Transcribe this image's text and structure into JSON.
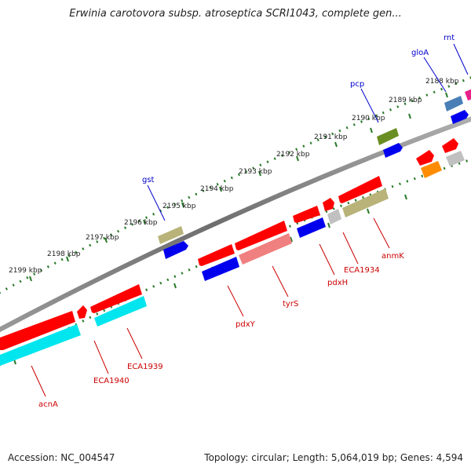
{
  "title": "Erwinia carotovora subsp. atroseptica SCRI1043, complete gen...",
  "footer": {
    "accession_label": "Accession:",
    "accession": "NC_004547",
    "topology_label": "Topology:",
    "topology": "circular",
    "length_label": "Length:",
    "length": "5,064,019 bp",
    "genes_label": "Genes:",
    "genes": "4,594"
  },
  "colors": {
    "backbone": "#7a7a7a",
    "forward_label": "#0000cc",
    "reverse_label": "#cc0000",
    "ticks": "#2a7a2a"
  },
  "kbp_labels": [
    "2199 kbp",
    "2198 kbp",
    "2197 kbp",
    "2196 kbp",
    "2195 kbp",
    "2194 kbp",
    "2193 kbp",
    "2192 kbp",
    "2191 kbp",
    "2190 kbp",
    "2189 kbp",
    "2188 kbp"
  ],
  "forward_genes": [
    {
      "name": "gst",
      "color": "#b9b37a"
    },
    {
      "name": "pcp",
      "color": "#6b8e23"
    },
    {
      "name": "gloA",
      "color": "#4a7fb5"
    },
    {
      "name": "rnt",
      "color": "#e8208a"
    }
  ],
  "reverse_genes": [
    {
      "name": "acnA",
      "color": "#ff0000"
    },
    {
      "name": "ECA1940",
      "color": "#ff0000"
    },
    {
      "name": "ECA1939",
      "color": "#ff0000"
    },
    {
      "name": "pdxY",
      "color": "#ff0000"
    },
    {
      "name": "tyrS",
      "color": "#ff0000"
    },
    {
      "name": "pdxH",
      "color": "#ff0000"
    },
    {
      "name": "ECA1934",
      "color": "#ff0000"
    },
    {
      "name": "anmK",
      "color": "#ff0000"
    }
  ]
}
